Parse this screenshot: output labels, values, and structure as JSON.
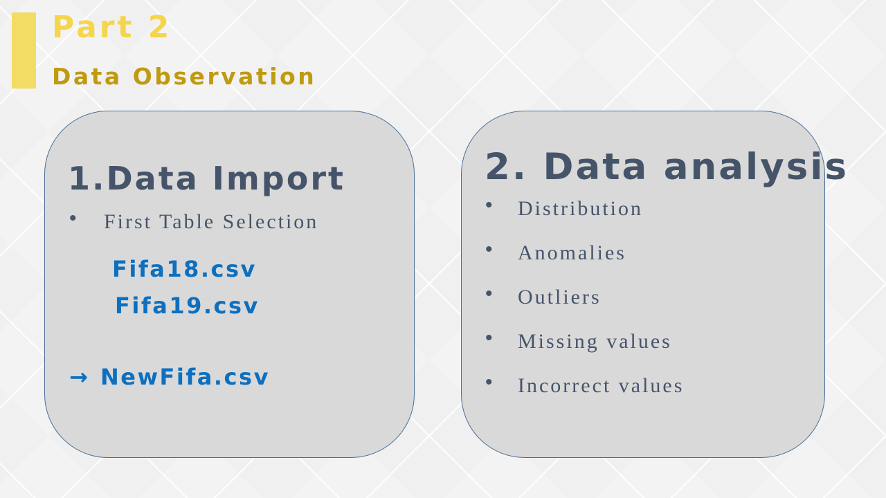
{
  "slide": {
    "part_label": "Part 2",
    "subtitle": "Data Observation",
    "accent_color": "#f2dc63"
  },
  "left_card": {
    "heading": "1.Data Import",
    "bullet_symbol": "•",
    "bullet": "First Table Selection",
    "files": [
      "Fifa18.csv",
      "Fifa19.csv"
    ],
    "result_arrow": "→",
    "result": "NewFifa.csv"
  },
  "right_card": {
    "heading": "2. Data analysis",
    "bullet_symbol": "•",
    "items": [
      "Distribution",
      "Anomalies",
      "Outliers",
      "Missing values",
      "Incorrect values"
    ]
  },
  "colors": {
    "card_fill": "#d9d9d9",
    "card_border": "#4a6d96",
    "heading_text": "#46546a",
    "file_text": "#0d6fbf",
    "part_text": "#f5d54a",
    "subtitle_text": "#c09a10"
  }
}
